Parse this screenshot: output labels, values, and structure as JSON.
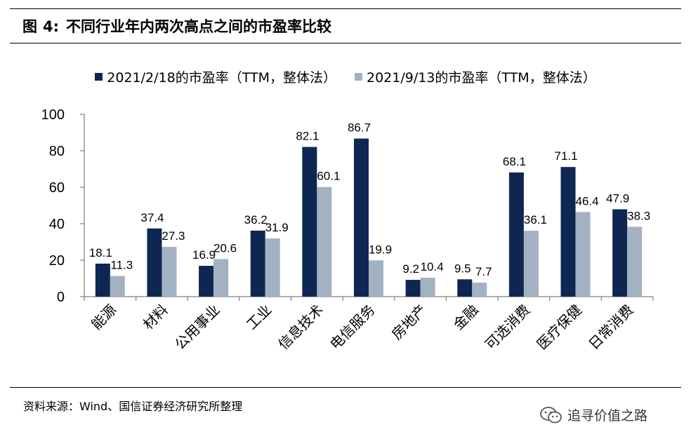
{
  "figure": {
    "label": "图",
    "number": "4:",
    "title": "不同行业年内两次高点之间的市盈率比较"
  },
  "source": "资料来源：Wind、国信证券经济研究所整理",
  "watermark": {
    "icon": "wechat-icon",
    "text": "追寻价值之路"
  },
  "colors": {
    "series1": "#0e2752",
    "series2": "#a3b2c2",
    "axis": "#7f7f7f"
  },
  "chart_data": {
    "type": "bar",
    "title": "",
    "xlabel": "",
    "ylabel": "",
    "ylim": [
      0,
      100
    ],
    "yticks": [
      0,
      20,
      40,
      60,
      80,
      100
    ],
    "grid": false,
    "legend_position": "top",
    "categories": [
      "能源",
      "材料",
      "公用事业",
      "工业",
      "信息技术",
      "电信服务",
      "房地产",
      "金融",
      "可选消费",
      "医疗保健",
      "日常消费"
    ],
    "series": [
      {
        "name": "2021/2/18的市盈率（TTM，整体法）",
        "values": [
          18.1,
          37.4,
          16.9,
          36.2,
          82.1,
          86.7,
          9.2,
          9.5,
          68.1,
          71.1,
          47.9
        ]
      },
      {
        "name": "2021/9/13的市盈率（TTM，整体法）",
        "values": [
          11.3,
          27.3,
          20.6,
          31.9,
          60.1,
          19.9,
          10.4,
          7.7,
          36.1,
          46.4,
          38.3
        ]
      }
    ]
  }
}
